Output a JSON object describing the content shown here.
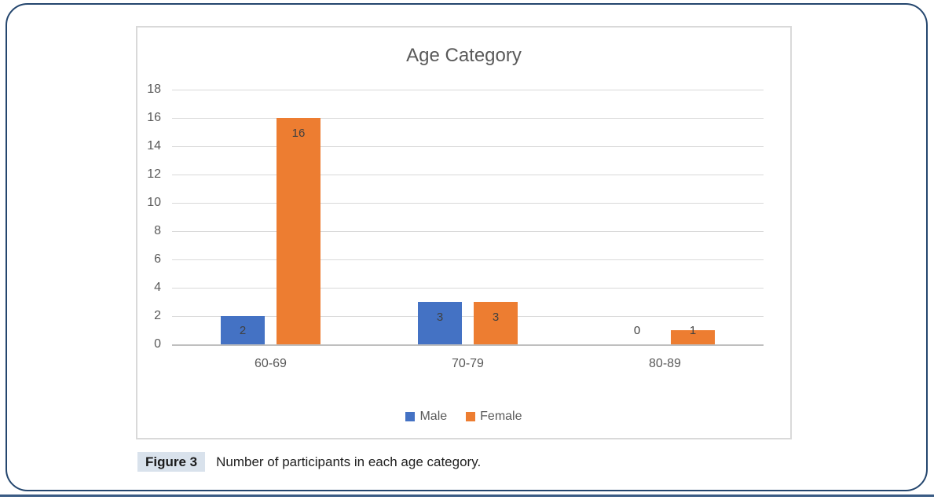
{
  "figure": {
    "label": "Figure 3",
    "caption": "Number of participants in each age category."
  },
  "chart_data": {
    "type": "bar",
    "title": "Age Category",
    "categories": [
      "60-69",
      "70-79",
      "80-89"
    ],
    "series": [
      {
        "name": "Male",
        "color": "#4472C4",
        "values": [
          2,
          3,
          0
        ]
      },
      {
        "name": "Female",
        "color": "#ED7D31",
        "values": [
          16,
          3,
          1
        ]
      }
    ],
    "xlabel": "",
    "ylabel": "",
    "ylim": [
      0,
      18
    ],
    "yticks": [
      0,
      2,
      4,
      6,
      8,
      10,
      12,
      14,
      16,
      18
    ],
    "grid": true,
    "data_labels": true,
    "legend_position": "bottom"
  },
  "colors": {
    "frame_border": "#24466E",
    "chart_border": "#D9D9D9",
    "gridline": "#D9D9D9",
    "axis_line": "#BFBFBF",
    "tick_text": "#595959",
    "title_text": "#595959",
    "data_label_text": "#404040",
    "figure_label_highlight": "#D9E2EC"
  }
}
